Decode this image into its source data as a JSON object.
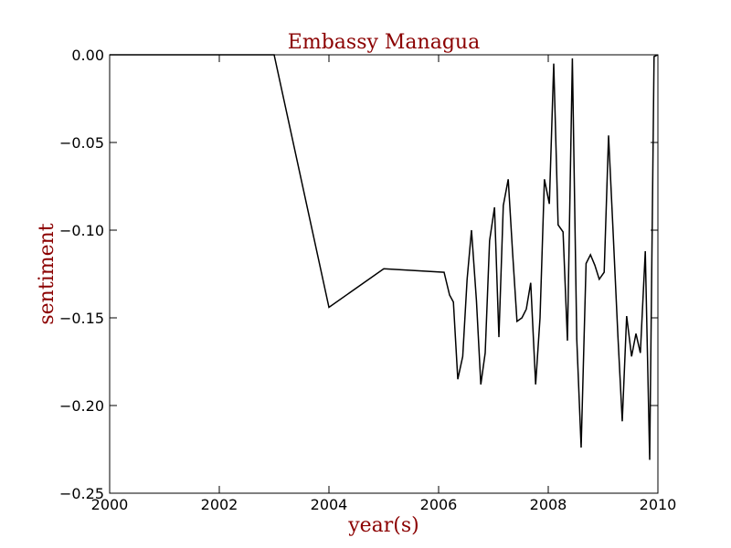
{
  "chart_data": {
    "type": "line",
    "title": "Embassy Managua",
    "xlabel": "year(s)",
    "ylabel": "sentiment",
    "xlim": [
      2000,
      2010
    ],
    "ylim": [
      -0.25,
      0.0
    ],
    "grid": false,
    "legend": "none",
    "line_color": "#000000",
    "x_ticks": [
      2000,
      2002,
      2004,
      2006,
      2008,
      2010
    ],
    "x_tick_labels": [
      "2000",
      "2002",
      "2004",
      "2006",
      "2008",
      "2010"
    ],
    "y_ticks": [
      0.0,
      -0.05,
      -0.1,
      -0.15,
      -0.2,
      -0.25
    ],
    "y_tick_labels": [
      "0.00",
      "−0.05",
      "−0.10",
      "−0.15",
      "−0.20",
      "−0.25"
    ],
    "series": [
      {
        "x": [
          2000.0,
          2003.0,
          2004.0,
          2005.0,
          2006.1,
          2006.2,
          2006.27,
          2006.35,
          2006.44,
          2006.52,
          2006.6,
          2006.69,
          2006.77,
          2006.85,
          2006.93,
          2007.02,
          2007.1,
          2007.18,
          2007.27,
          2007.35,
          2007.43,
          2007.52,
          2007.6,
          2007.68,
          2007.77,
          2007.85,
          2007.93,
          2008.02,
          2008.1,
          2008.18,
          2008.27,
          2008.35,
          2008.44,
          2008.52,
          2008.6,
          2008.69,
          2008.77,
          2008.85,
          2008.93,
          2009.02,
          2009.1,
          2009.18,
          2009.27,
          2009.35,
          2009.43,
          2009.52,
          2009.6,
          2009.68,
          2009.77,
          2009.85,
          2009.93,
          2010.0
        ],
        "y": [
          0.0,
          0.0,
          -0.144,
          -0.122,
          -0.124,
          -0.137,
          -0.141,
          -0.185,
          -0.172,
          -0.128,
          -0.1,
          -0.14,
          -0.188,
          -0.17,
          -0.106,
          -0.087,
          -0.161,
          -0.086,
          -0.071,
          -0.113,
          -0.152,
          -0.15,
          -0.145,
          -0.13,
          -0.188,
          -0.15,
          -0.071,
          -0.085,
          -0.005,
          -0.097,
          -0.101,
          -0.163,
          -0.002,
          -0.162,
          -0.224,
          -0.119,
          -0.114,
          -0.12,
          -0.128,
          -0.124,
          -0.046,
          -0.099,
          -0.16,
          -0.209,
          -0.149,
          -0.172,
          -0.159,
          -0.17,
          -0.112,
          -0.231,
          -0.001,
          0.0
        ]
      }
    ]
  }
}
